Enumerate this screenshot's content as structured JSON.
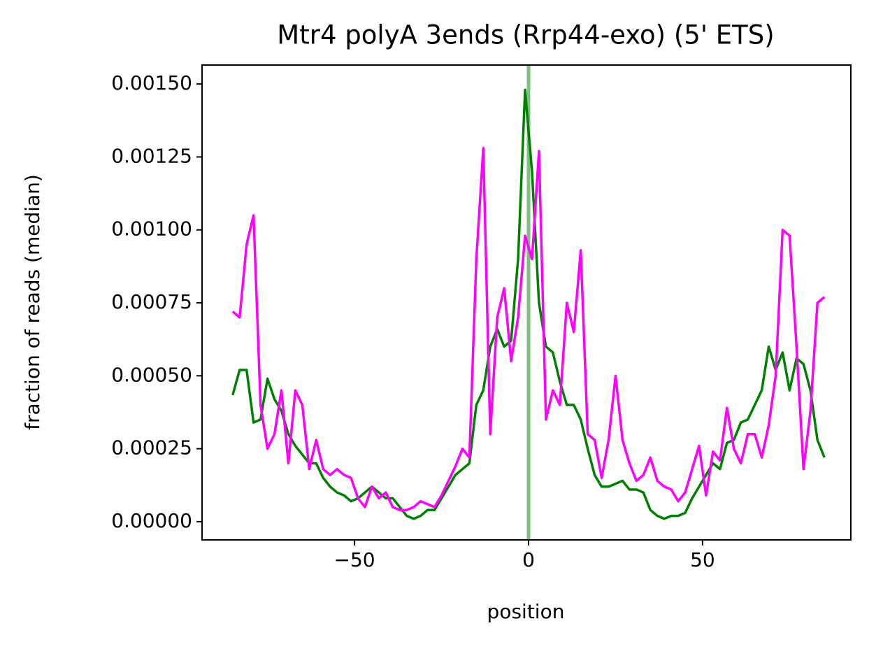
{
  "chart_data": {
    "type": "line",
    "title": "Mtr4 polyA 3ends (Rrp44-exo) (5' ETS)",
    "xlabel": "position",
    "ylabel": "fraction of reads (median)",
    "x": [
      -85,
      -83,
      -81,
      -79,
      -77,
      -75,
      -73,
      -71,
      -69,
      -67,
      -65,
      -63,
      -61,
      -59,
      -57,
      -55,
      -53,
      -51,
      -49,
      -47,
      -45,
      -43,
      -41,
      -39,
      -37,
      -35,
      -33,
      -31,
      -29,
      -27,
      -25,
      -23,
      -21,
      -19,
      -17,
      -15,
      -13,
      -11,
      -9,
      -7,
      -5,
      -3,
      -1,
      1,
      3,
      5,
      7,
      9,
      11,
      13,
      15,
      17,
      19,
      21,
      23,
      25,
      27,
      29,
      31,
      33,
      35,
      37,
      39,
      41,
      43,
      45,
      47,
      49,
      51,
      53,
      55,
      57,
      59,
      61,
      63,
      65,
      67,
      69,
      71,
      73,
      75,
      77,
      79,
      81,
      83,
      85
    ],
    "series": [
      {
        "color": "#008000",
        "values": [
          0.000434,
          0.00052,
          0.00052,
          0.00034,
          0.00035,
          0.00049,
          0.00042,
          0.00038,
          0.0003,
          0.00026,
          0.00023,
          0.0002,
          0.0002,
          0.00015,
          0.00012,
          0.0001,
          9e-05,
          7e-05,
          8e-05,
          0.0001,
          0.00012,
          0.0001,
          8e-05,
          8e-05,
          5e-05,
          2e-05,
          1e-05,
          2e-05,
          4e-05,
          4e-05,
          8e-05,
          0.00012,
          0.00016,
          0.00018,
          0.0002,
          0.0004,
          0.00045,
          0.0006,
          0.00066,
          0.0006,
          0.00062,
          0.0009,
          0.00148,
          0.0012,
          0.00075,
          0.0006,
          0.00058,
          0.00048,
          0.0004,
          0.0004,
          0.00035,
          0.00025,
          0.00016,
          0.00012,
          0.00012,
          0.00013,
          0.00014,
          0.00011,
          0.00011,
          0.0001,
          4e-05,
          2e-05,
          1e-05,
          2e-05,
          2e-05,
          3e-05,
          8e-05,
          0.00012,
          0.00016,
          0.0002,
          0.00018,
          0.00027,
          0.00028,
          0.00034,
          0.00035,
          0.0004,
          0.00045,
          0.0006,
          0.00052,
          0.00058,
          0.00045,
          0.00056,
          0.00054,
          0.00045,
          0.00028,
          0.00022
        ]
      },
      {
        "color": "#ff00ff",
        "values": [
          0.00072,
          0.0007,
          0.00095,
          0.00105,
          0.0004,
          0.00025,
          0.0003,
          0.00045,
          0.0002,
          0.00045,
          0.0004,
          0.00018,
          0.00028,
          0.00018,
          0.00016,
          0.00018,
          0.00016,
          0.00015,
          8e-05,
          5e-05,
          0.00012,
          8e-05,
          0.0001,
          5e-05,
          4e-05,
          4e-05,
          5e-05,
          7e-05,
          6e-05,
          5e-05,
          9e-05,
          0.00014,
          0.00019,
          0.00025,
          0.00022,
          0.0009,
          0.00128,
          0.0003,
          0.0007,
          0.0008,
          0.00055,
          0.0007,
          0.00098,
          0.0009,
          0.00127,
          0.00035,
          0.00045,
          0.0004,
          0.00075,
          0.00065,
          0.00093,
          0.0003,
          0.00028,
          0.00015,
          0.00028,
          0.0005,
          0.00028,
          0.0002,
          0.00014,
          0.00016,
          0.00022,
          0.00014,
          0.00012,
          0.00011,
          7e-05,
          0.0001,
          0.00018,
          0.00026,
          9e-05,
          0.00024,
          0.00021,
          0.00039,
          0.00025,
          0.0002,
          0.0003,
          0.0003,
          0.00022,
          0.00033,
          0.0005,
          0.001,
          0.00098,
          0.0006,
          0.00018,
          0.00038,
          0.00075,
          0.00077
        ]
      }
    ],
    "vline": {
      "x": 0,
      "color": "#008000",
      "alpha": 0.5
    },
    "xlim": [
      -93.8,
      92.6
    ],
    "ylim": [
      -6.25e-05,
      0.001565
    ],
    "xticks": [
      {
        "value": -50,
        "label": "−50"
      },
      0,
      50
    ],
    "yticks": [
      {
        "value": 0,
        "label": "0.00000"
      },
      {
        "value": 0.00025,
        "label": "0.00025"
      },
      {
        "value": 0.0005,
        "label": "0.00050"
      },
      {
        "value": 0.00075,
        "label": "0.00075"
      },
      {
        "value": 0.001,
        "label": "0.00100"
      },
      {
        "value": 0.00125,
        "label": "0.00125"
      },
      {
        "value": 0.0015,
        "label": "0.00150"
      }
    ]
  }
}
